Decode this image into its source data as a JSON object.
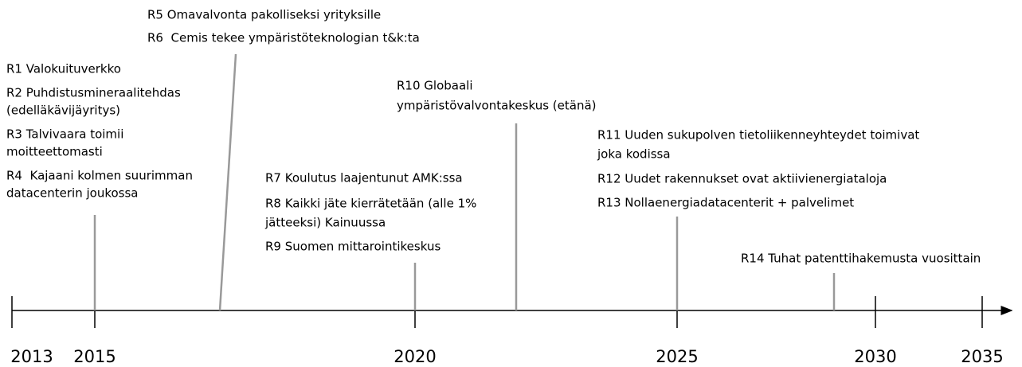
{
  "timeline": {
    "years": [
      "2013",
      "2015",
      "2020",
      "2025",
      "2030",
      "2035"
    ],
    "events": [
      {
        "lines": [
          "R1 Valokuituverkko",
          "R2 Puhdistusmineraalitehdas",
          "(edelläkävijäyritys)",
          "R3 Talvivaara toimii",
          "moitteettomasti",
          "R4  Kajaani kolmen suurimman",
          "datacenterin joukossa"
        ]
      },
      {
        "lines": [
          "R5 Omavalvonta pakolliseksi yrityksille",
          "R6  Cemis tekee ympäristöteknologian t&k:ta"
        ]
      },
      {
        "lines": [
          "R7 Koulutus laajentunut AMK:ssa",
          "R8 Kaikki jäte kierrätetään (alle 1%",
          "jätteeksi) Kainuussa",
          "R9 Suomen mittarointikeskus"
        ]
      },
      {
        "lines": [
          "R10 Globaali",
          "ympäristövalvontakeskus (etänä)"
        ]
      },
      {
        "lines": [
          "R11 Uuden sukupolven tietoliikenneyhteydet toimivat",
          "joka kodissa",
          "R12 Uudet rakennukset ovat aktiivienergiataloja",
          "R13 Nollaenergiadatacenterit + palvelimet"
        ]
      },
      {
        "lines": [
          "R14 Tuhat patenttihakemusta vuosittain"
        ]
      }
    ]
  }
}
